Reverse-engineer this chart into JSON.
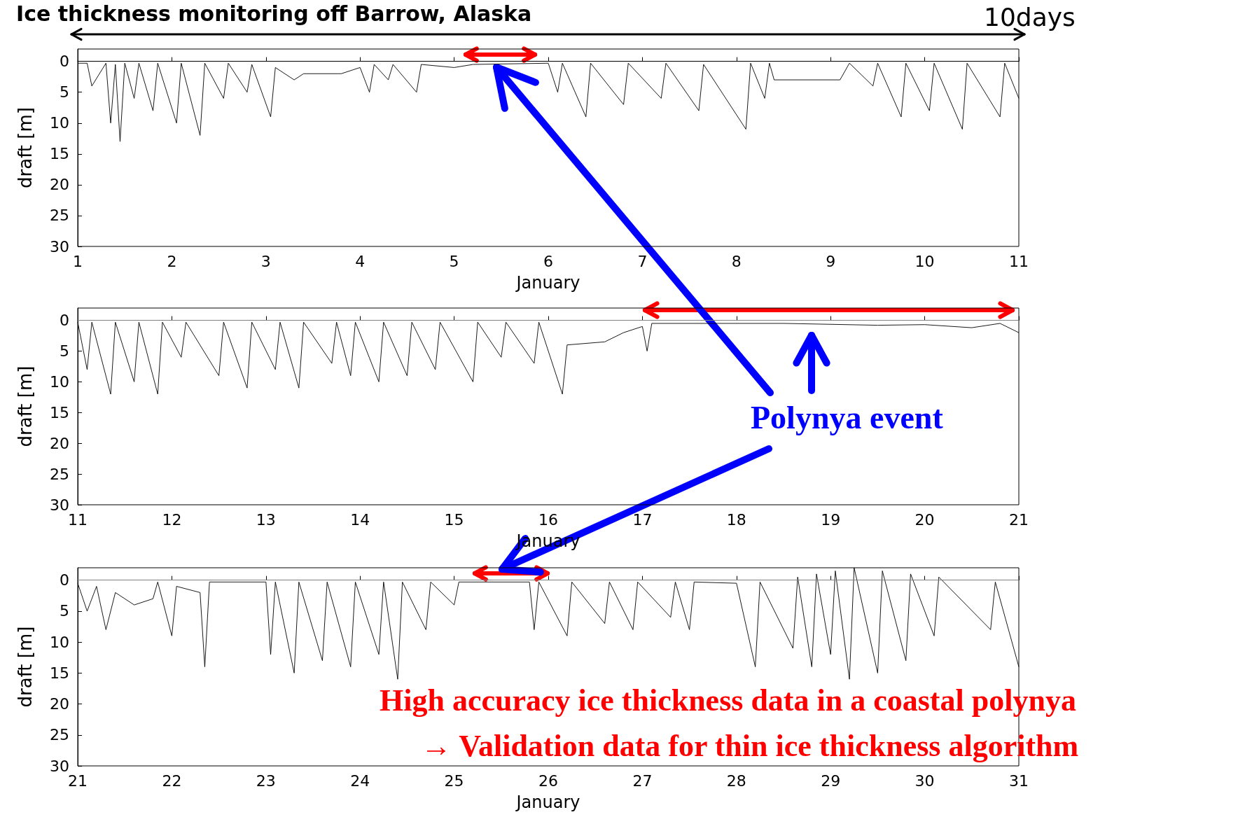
{
  "chart_data": [
    {
      "type": "line",
      "title": "Ice thickness monitoring off Barrow, Alaska",
      "xlabel": "January",
      "ylabel": "draft [m]",
      "xlim": [
        1,
        11
      ],
      "xticks": [
        1,
        2,
        3,
        4,
        5,
        6,
        7,
        8,
        9,
        10,
        11
      ],
      "ylim": [
        30,
        -2
      ],
      "yticks": [
        0,
        5,
        10,
        15,
        20,
        25,
        30
      ],
      "annotations": [
        "10days"
      ],
      "series": [
        {
          "color": "#000000",
          "x": [
            1,
            1.1,
            1.15,
            1.3,
            1.35,
            1.4,
            1.45,
            1.5,
            1.6,
            1.65,
            1.8,
            1.85,
            2.05,
            2.1,
            2.3,
            2.35,
            2.55,
            2.6,
            2.8,
            2.85,
            3.05,
            3.1,
            3.3,
            3.4,
            3.8,
            4.0,
            4.1,
            4.15,
            4.3,
            4.35,
            4.6,
            4.65,
            5.0,
            5.2,
            6.0,
            6.1,
            6.15,
            6.4,
            6.45,
            6.8,
            6.85,
            7.2,
            7.25,
            7.6,
            7.65,
            8.1,
            8.15,
            8.3,
            8.35,
            8.4,
            9.1,
            9.2,
            9.45,
            9.5,
            9.75,
            9.8,
            10.05,
            10.1,
            10.4,
            10.45,
            10.8,
            10.85,
            11
          ],
          "values": [
            0.3,
            0.3,
            4,
            0.3,
            10,
            0.5,
            13,
            0.3,
            6,
            0.3,
            8,
            0.3,
            10,
            0.3,
            12,
            0.3,
            6,
            0.3,
            5,
            0.5,
            9,
            1,
            3,
            2,
            2,
            1,
            5,
            0.5,
            3,
            0.5,
            5,
            0.5,
            1,
            0.5,
            0.3,
            5,
            0.3,
            9,
            0.3,
            7,
            0.3,
            6,
            0.3,
            8,
            0.5,
            11,
            0.3,
            6,
            0.3,
            3,
            3,
            0.3,
            4,
            0.3,
            9,
            0.3,
            8,
            0.3,
            11,
            0.3,
            9,
            0.3,
            6
          ]
        }
      ]
    },
    {
      "type": "line",
      "xlabel": "January",
      "ylabel": "draft [m]",
      "xlim": [
        11,
        21
      ],
      "xticks": [
        11,
        12,
        13,
        14,
        15,
        16,
        17,
        18,
        19,
        20,
        21
      ],
      "ylim": [
        30,
        -2
      ],
      "yticks": [
        0,
        5,
        10,
        15,
        20,
        25,
        30
      ],
      "annotations": [
        "Polynya event"
      ],
      "ref_lines": [
        {
          "axis": "y",
          "value": 0,
          "color": "#808080"
        }
      ],
      "series": [
        {
          "color": "#000000",
          "x": [
            11,
            11.1,
            11.15,
            11.35,
            11.4,
            11.6,
            11.65,
            11.85,
            11.9,
            12.1,
            12.15,
            12.5,
            12.55,
            12.8,
            12.85,
            13.1,
            13.15,
            13.35,
            13.4,
            13.7,
            13.75,
            13.9,
            13.95,
            14.2,
            14.25,
            14.5,
            14.55,
            14.8,
            14.85,
            15.2,
            15.25,
            15.5,
            15.55,
            15.85,
            15.9,
            16.15,
            16.2,
            16.6,
            16.8,
            17.0,
            17.05,
            17.1,
            18.5,
            19.5,
            20.0,
            20.5,
            20.8,
            21
          ],
          "values": [
            0.3,
            8,
            0.3,
            12,
            0.3,
            10,
            0.3,
            12,
            0.3,
            6,
            0.3,
            9,
            0.3,
            11,
            0.3,
            8,
            0.3,
            11,
            0.3,
            7,
            0.3,
            9,
            0.3,
            10,
            0.3,
            9,
            0.3,
            8,
            0.3,
            10,
            0.3,
            6,
            0.3,
            7,
            0.3,
            12,
            4,
            3.5,
            2,
            1,
            5,
            0.5,
            0.5,
            0.8,
            0.7,
            1.2,
            0.5,
            2
          ]
        }
      ]
    },
    {
      "type": "line",
      "xlabel": "January",
      "ylabel": "draft [m]",
      "xlim": [
        21,
        31
      ],
      "xticks": [
        21,
        22,
        23,
        24,
        25,
        26,
        27,
        28,
        29,
        30,
        31
      ],
      "ylim": [
        30,
        -2
      ],
      "yticks": [
        0,
        5,
        10,
        15,
        20,
        25,
        30
      ],
      "annotations": [
        "High accuracy ice thickness data in a coastal polynya",
        "→  Validation data for thin ice thickness algorithm"
      ],
      "ref_lines": [
        {
          "axis": "y",
          "value": 0,
          "color": "#808080"
        }
      ],
      "series": [
        {
          "color": "#000000",
          "x": [
            21,
            21.1,
            21.2,
            21.3,
            21.4,
            21.6,
            21.8,
            21.85,
            22.0,
            22.05,
            22.3,
            22.35,
            22.4,
            23.0,
            23.05,
            23.1,
            23.3,
            23.35,
            23.6,
            23.65,
            23.9,
            23.95,
            24.2,
            24.25,
            24.4,
            24.45,
            24.7,
            24.75,
            25.0,
            25.05,
            25.8,
            25.85,
            25.9,
            26.2,
            26.25,
            26.6,
            26.65,
            26.9,
            26.95,
            27.3,
            27.35,
            27.5,
            27.55,
            28.0,
            28.2,
            28.25,
            28.6,
            28.65,
            28.8,
            28.85,
            29.0,
            29.05,
            29.2,
            29.25,
            29.5,
            29.55,
            29.8,
            29.85,
            30.1,
            30.15,
            30.7,
            30.75,
            31
          ],
          "values": [
            0.5,
            5,
            1,
            8,
            2,
            4,
            3,
            0.3,
            9,
            1,
            2,
            14,
            0.3,
            0.3,
            12,
            0.3,
            15,
            0.3,
            13,
            0.3,
            14,
            0.3,
            12,
            0.3,
            16,
            0.3,
            8,
            0.3,
            4,
            0.3,
            0.3,
            8,
            0.3,
            9,
            0.3,
            7,
            0.3,
            8,
            0.3,
            6,
            0.3,
            8,
            0.3,
            0.5,
            14,
            0.3,
            11,
            -0.5,
            14,
            -1,
            12,
            -1.5,
            16,
            -2,
            15,
            -1.5,
            13,
            -1,
            9,
            -0.5,
            8,
            0.3,
            14
          ]
        }
      ]
    }
  ]
}
